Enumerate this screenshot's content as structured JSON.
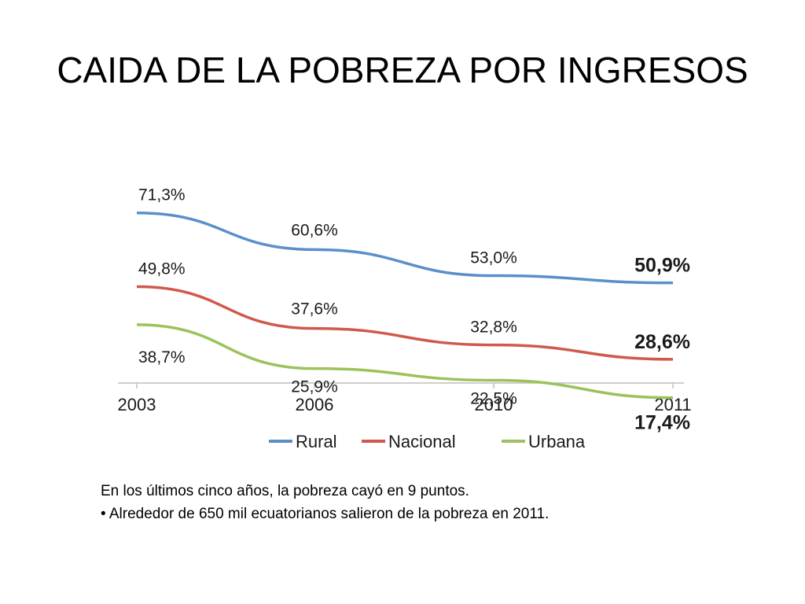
{
  "slide": {
    "title": "CAIDA DE LA POBREZA POR INGRESOS"
  },
  "caption": {
    "line1": "En los últimos cinco años, la pobreza cayó en 9 puntos.",
    "line2": "• Alrededor de 650 mil ecuatorianos salieron de la pobreza en 2011."
  },
  "chart_data": {
    "type": "line",
    "title": "",
    "xlabel": "",
    "ylabel": "",
    "categories": [
      "2003",
      "2006",
      "2010",
      "2011"
    ],
    "ylim": [
      0,
      80
    ],
    "grid": false,
    "legend_position": "bottom",
    "series": [
      {
        "name": "Rural",
        "color": "#5b8fc9",
        "values": [
          71.3,
          60.6,
          53.0,
          50.9
        ],
        "labels": [
          "71,3%",
          "60,6%",
          "53,0%",
          "50,9%"
        ],
        "label_side": [
          "above",
          "above",
          "above",
          "above"
        ]
      },
      {
        "name": "Nacional",
        "color": "#cf5a4c",
        "values": [
          49.8,
          37.6,
          32.8,
          28.6
        ],
        "labels": [
          "49,8%",
          "37,6%",
          "32,8%",
          "28,6%"
        ],
        "label_side": [
          "above",
          "above",
          "above",
          "above"
        ]
      },
      {
        "name": "Urbana",
        "color": "#9bc25b",
        "values": [
          38.7,
          25.9,
          22.5,
          17.4
        ],
        "labels": [
          "38,7%",
          "25,9%",
          "22,5%",
          "17,4%"
        ],
        "label_side": [
          "below",
          "below",
          "below",
          "below"
        ]
      }
    ],
    "bold_last_label": true
  }
}
